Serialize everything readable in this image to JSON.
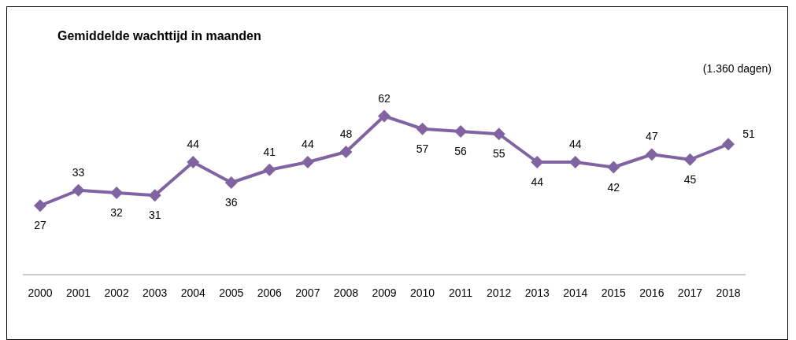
{
  "chart_data": {
    "type": "line",
    "title": "Gemiddelde wachttijd in maanden",
    "annotations": [
      "(1.360 dagen)"
    ],
    "categories": [
      "2000",
      "2001",
      "2002",
      "2003",
      "2004",
      "2005",
      "2006",
      "2007",
      "2008",
      "2009",
      "2010",
      "2011",
      "2012",
      "2013",
      "2014",
      "2015",
      "2016",
      "2017",
      "2018"
    ],
    "series": [
      {
        "color": "#8064a2",
        "values": [
          27,
          33,
          32,
          31,
          44,
          36,
          41,
          44,
          48,
          62,
          57,
          56,
          55,
          44,
          44,
          42,
          47,
          45,
          51
        ]
      }
    ],
    "data_labels": true,
    "marker": "diamond",
    "line_style": "solid",
    "grid": false,
    "legend": false
  }
}
